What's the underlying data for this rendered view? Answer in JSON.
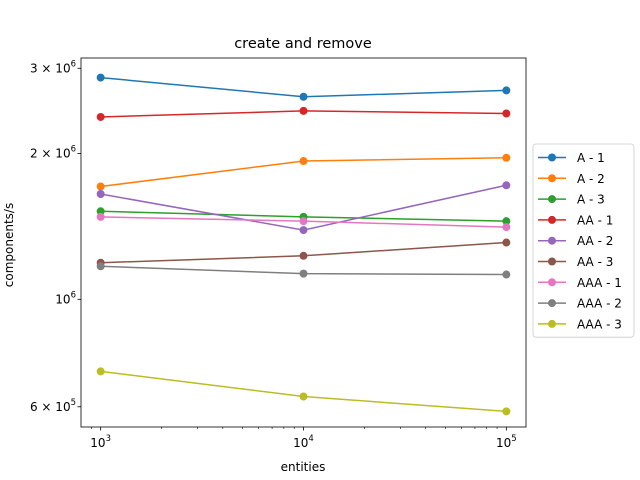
{
  "chart_data": {
    "type": "line",
    "title": "create and remove",
    "xlabel": "entities",
    "ylabel": "components/s",
    "xscale": "log",
    "yscale": "log",
    "x": [
      1000,
      10000,
      100000
    ],
    "xticks": [
      {
        "value": 1000,
        "base": "10",
        "exp": "3"
      },
      {
        "value": 10000,
        "base": "10",
        "exp": "4"
      },
      {
        "value": 100000,
        "base": "10",
        "exp": "5"
      }
    ],
    "yticks": [
      {
        "value": 600000,
        "mant": "6 × 10",
        "exp": "5"
      },
      {
        "value": 1000000,
        "mant": "10",
        "exp": "6"
      },
      {
        "value": 2000000,
        "mant": "2 × 10",
        "exp": "6"
      },
      {
        "value": 3000000,
        "mant": "3 × 10",
        "exp": "6"
      }
    ],
    "xlim": [
      800,
      125000
    ],
    "ylim": [
      545000,
      3150000
    ],
    "grid": false,
    "legend_position": "center-right-outside",
    "series": [
      {
        "name": "A - 1",
        "color": "#1f77b4",
        "values": [
          2870000,
          2620000,
          2700000
        ]
      },
      {
        "name": "A - 2",
        "color": "#ff7f0e",
        "values": [
          1710000,
          1930000,
          1960000
        ]
      },
      {
        "name": "A - 3",
        "color": "#2ca02c",
        "values": [
          1520000,
          1480000,
          1450000
        ]
      },
      {
        "name": "AA - 1",
        "color": "#d62728",
        "values": [
          2380000,
          2450000,
          2420000
        ]
      },
      {
        "name": "AA - 2",
        "color": "#9467bd",
        "values": [
          1650000,
          1390000,
          1720000
        ]
      },
      {
        "name": "AA - 3",
        "color": "#8c564b",
        "values": [
          1190000,
          1230000,
          1310000
        ]
      },
      {
        "name": "AAA - 1",
        "color": "#e377c2",
        "values": [
          1480000,
          1450000,
          1410000
        ]
      },
      {
        "name": "AAA - 2",
        "color": "#7f7f7f",
        "values": [
          1170000,
          1130000,
          1125000
        ]
      },
      {
        "name": "AAA - 3",
        "color": "#bcbd22",
        "values": [
          710000,
          630000,
          587000
        ]
      }
    ]
  }
}
